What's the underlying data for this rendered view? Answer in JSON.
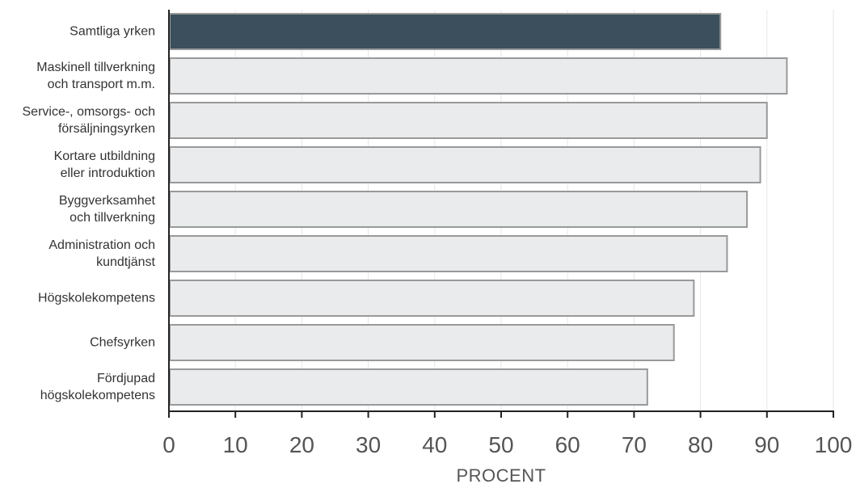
{
  "chart_data": {
    "type": "bar",
    "orientation": "horizontal",
    "categories": [
      [
        "Samtliga yrken"
      ],
      [
        "Maskinell tillverkning",
        "och transport m.m."
      ],
      [
        "Service-, omsorgs- och",
        "försäljningsyrken"
      ],
      [
        "Kortare utbildning",
        "eller introduktion"
      ],
      [
        "Byggverksamhet",
        "och tillverkning"
      ],
      [
        "Administration och",
        "kundtjänst"
      ],
      [
        "Högskolekompetens"
      ],
      [
        "Chefsyrken"
      ],
      [
        "Fördjupad",
        "högskolekompetens"
      ]
    ],
    "values": [
      83,
      93,
      90,
      89,
      87,
      84,
      79,
      76,
      72
    ],
    "highlight_index": 0,
    "xlabel": "PROCENT",
    "ylabel": "",
    "xlim": [
      0,
      100
    ],
    "xticks": [
      0,
      10,
      20,
      30,
      40,
      50,
      60,
      70,
      80,
      90,
      100
    ],
    "grid": true,
    "colors": {
      "highlight_fill": "#3b4f5c",
      "bar_fill": "#e9ebed",
      "bar_stroke": "#999999",
      "grid": "#e6e6e6",
      "axis": "#222222"
    }
  }
}
